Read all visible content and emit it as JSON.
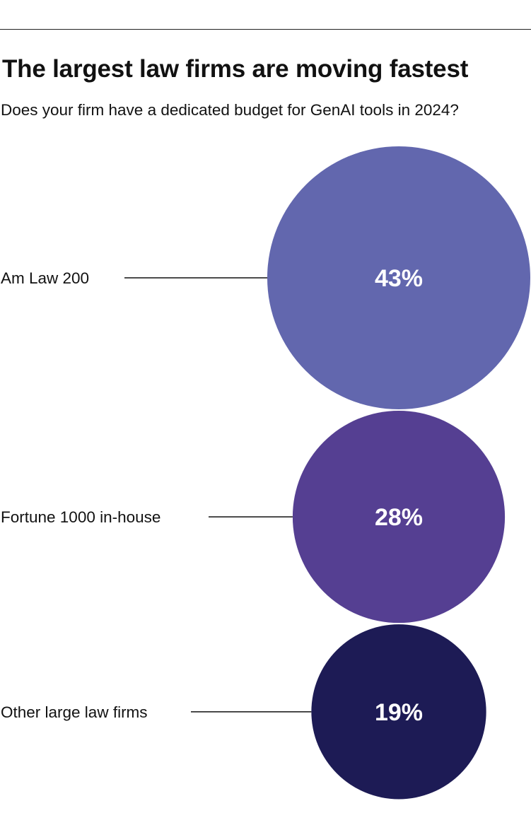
{
  "title": "The largest law firms are moving fastest",
  "subtitle": "Does your firm have a dedicated budget for GenAI tools in 2024?",
  "chart_data": {
    "type": "bubble",
    "title": "The largest law firms are moving fastest",
    "subtitle": "Does your firm have a dedicated budget for GenAI tools in 2024?",
    "categories": [
      "Am Law 200",
      "Fortune 1000 in-house",
      "Other large law firms"
    ],
    "values": [
      43,
      28,
      19
    ],
    "value_labels": [
      "43%",
      "28%",
      "19%"
    ],
    "unit": "%",
    "colors": [
      "#6267ae",
      "#553f92",
      "#1d1b55"
    ],
    "legend": "none",
    "grid": false
  }
}
